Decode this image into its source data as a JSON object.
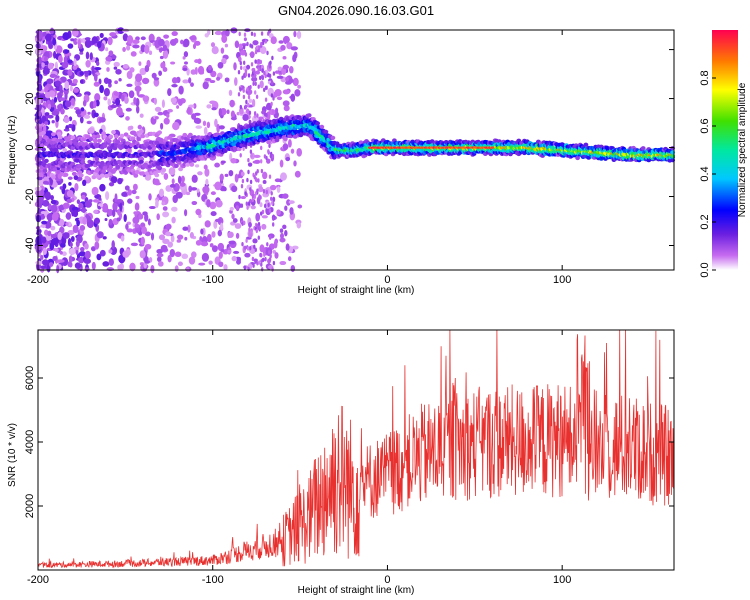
{
  "title": "GN04.2026.090.16.03.G01",
  "chart_data": [
    {
      "type": "heatmap",
      "name": "spectrogram",
      "xlabel": "Height of straight line (km)",
      "ylabel": "Frequency (Hz)",
      "xlim": [
        -200,
        164
      ],
      "ylim": [
        -50,
        48
      ],
      "xticks": [
        -200,
        -100,
        0,
        100
      ],
      "yticks": [
        -40,
        -20,
        0,
        20,
        40
      ],
      "ridge": {
        "description": "dominant frequency ridge vs height",
        "x": [
          -140,
          -120,
          -100,
          -80,
          -60,
          -45,
          -38,
          -30,
          -20,
          -10,
          0,
          20,
          40,
          60,
          80,
          100,
          120,
          140,
          164
        ],
        "y": [
          -3,
          -2,
          1,
          5,
          8,
          9,
          5,
          -1,
          -1,
          0,
          0,
          0,
          0,
          0,
          0,
          -1,
          -2,
          -3,
          -3
        ]
      },
      "colorbar": {
        "label": "Normalized spectral amplitude",
        "range": [
          0.0,
          1.0
        ],
        "ticks": [
          0.0,
          0.2,
          0.4,
          0.6,
          0.8
        ]
      }
    },
    {
      "type": "line",
      "name": "snr",
      "xlabel": "Height of straight line (km)",
      "ylabel": "SNR (10 * v/v)",
      "xlim": [
        -200,
        164
      ],
      "ylim": [
        0,
        7500
      ],
      "xticks": [
        -200,
        -100,
        0,
        100
      ],
      "yticks": [
        2000,
        4000,
        6000
      ],
      "color": "#e8312f",
      "envelope": {
        "x": [
          -200,
          -150,
          -100,
          -80,
          -60,
          -45,
          -35,
          -28,
          -20,
          -10,
          0,
          20,
          40,
          60,
          80,
          100,
          120,
          140,
          164
        ],
        "y": [
          150,
          200,
          300,
          600,
          900,
          1600,
          2500,
          3000,
          2500,
          2800,
          3000,
          3600,
          3900,
          4000,
          4000,
          4100,
          3900,
          3800,
          3500
        ]
      },
      "peak_x": 112,
      "peak_y": 7400
    }
  ]
}
